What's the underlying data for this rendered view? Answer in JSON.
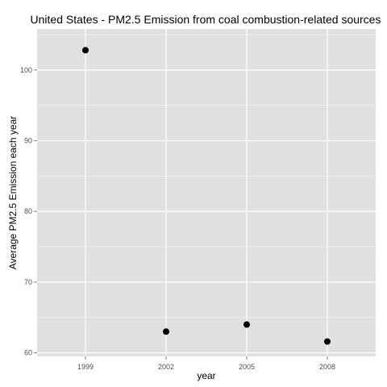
{
  "chart_data": {
    "type": "scatter",
    "title": "United States - PM2.5 Emission from coal combustion-related sources",
    "xlabel": "year",
    "ylabel": "Average PM2.5 Emission each year",
    "x_type": "categorical",
    "categories": [
      "1999",
      "2002",
      "2005",
      "2008"
    ],
    "series": [
      {
        "values": [
          102.8,
          63.0,
          64.0,
          61.6
        ]
      }
    ],
    "ylim": [
      59.5,
      105.8
    ],
    "yticks": [
      60,
      70,
      80,
      90,
      100
    ],
    "grid": true,
    "legend": "none",
    "colors": {
      "panel": "#e0e0e0",
      "grid_major": "#ffffff",
      "grid_minor": "#f0f0f0",
      "point": "#000000"
    }
  }
}
